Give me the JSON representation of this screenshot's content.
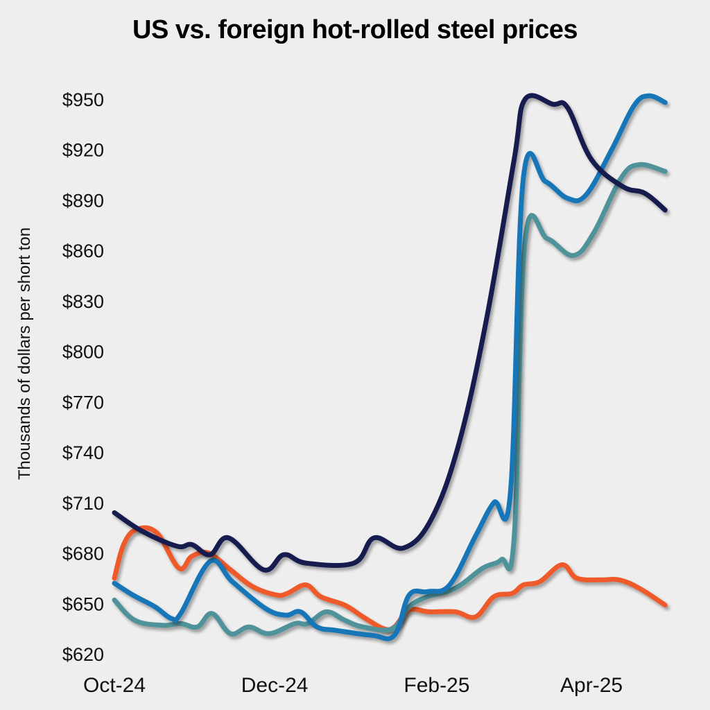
{
  "chart_data": {
    "type": "line",
    "title": "US vs. foreign hot-rolled steel prices",
    "xlabel": "",
    "ylabel": "Thousands of dollars per short ton",
    "ylim": [
      620,
      950
    ],
    "xlim_weeks": [
      0,
      30
    ],
    "grid": false,
    "legend": "none",
    "y_ticks": [
      {
        "value": 950,
        "label": "$950"
      },
      {
        "value": 920,
        "label": "$920"
      },
      {
        "value": 890,
        "label": "$890"
      },
      {
        "value": 860,
        "label": "$860"
      },
      {
        "value": 830,
        "label": "$830"
      },
      {
        "value": 800,
        "label": "$800"
      },
      {
        "value": 770,
        "label": "$770"
      },
      {
        "value": 740,
        "label": "$740"
      },
      {
        "value": 710,
        "label": "$710"
      },
      {
        "value": 680,
        "label": "$680"
      },
      {
        "value": 650,
        "label": "$650"
      },
      {
        "value": 620,
        "label": "$620"
      }
    ],
    "x_ticks": [
      {
        "week": 0,
        "label": "Oct-24"
      },
      {
        "week": 8.7,
        "label": "Dec-24"
      },
      {
        "week": 17.5,
        "label": "Feb-25"
      },
      {
        "week": 25.9,
        "label": "Apr-25"
      }
    ],
    "series": [
      {
        "name": "Series 1 (navy)",
        "color": "#141a4e",
        "points": [
          [
            0,
            704
          ],
          [
            1.5,
            693
          ],
          [
            3.4,
            684
          ],
          [
            4.2,
            685
          ],
          [
            5.2,
            679
          ],
          [
            6.2,
            689
          ],
          [
            8.1,
            670
          ],
          [
            9.2,
            679
          ],
          [
            10.4,
            674
          ],
          [
            13,
            674
          ],
          [
            14.1,
            689
          ],
          [
            15.7,
            683
          ],
          [
            17.2,
            700
          ],
          [
            18.7,
            745
          ],
          [
            20.2,
            819
          ],
          [
            21.7,
            914
          ],
          [
            22.3,
            950
          ],
          [
            23.8,
            947
          ],
          [
            24.6,
            945
          ],
          [
            25.9,
            914
          ],
          [
            27.6,
            898
          ],
          [
            28.8,
            894
          ],
          [
            29.9,
            884
          ]
        ]
      },
      {
        "name": "Series 2 (blue)",
        "color": "#1476b8",
        "points": [
          [
            0,
            662
          ],
          [
            1,
            655
          ],
          [
            2.2,
            648
          ],
          [
            3.1,
            641
          ],
          [
            3.6,
            644
          ],
          [
            5.2,
            675
          ],
          [
            6.4,
            663
          ],
          [
            8.2,
            647
          ],
          [
            9.3,
            643
          ],
          [
            10.1,
            645
          ],
          [
            11,
            636
          ],
          [
            12,
            634
          ],
          [
            14,
            631
          ],
          [
            15.2,
            631
          ],
          [
            16,
            655
          ],
          [
            17,
            657
          ],
          [
            18.2,
            661
          ],
          [
            19.6,
            690
          ],
          [
            20.6,
            710
          ],
          [
            21.5,
            716
          ],
          [
            22.2,
            903
          ],
          [
            23.4,
            901
          ],
          [
            24.6,
            891
          ],
          [
            25.6,
            893
          ],
          [
            27,
            920
          ],
          [
            28.2,
            946
          ],
          [
            29,
            952
          ],
          [
            29.9,
            948
          ]
        ]
      },
      {
        "name": "Series 3 (teal)",
        "color": "#4f929a",
        "points": [
          [
            0,
            652
          ],
          [
            1.1,
            640
          ],
          [
            2.6,
            637
          ],
          [
            3.6,
            638
          ],
          [
            4.5,
            636
          ],
          [
            5.3,
            644
          ],
          [
            6.3,
            632
          ],
          [
            7.3,
            636
          ],
          [
            8.4,
            632
          ],
          [
            9.8,
            638
          ],
          [
            10.5,
            638
          ],
          [
            11.5,
            645
          ],
          [
            12.5,
            640
          ],
          [
            13.5,
            636
          ],
          [
            15.1,
            635
          ],
          [
            16,
            648
          ],
          [
            17,
            654
          ],
          [
            18.5,
            659
          ],
          [
            20,
            671
          ],
          [
            21,
            676
          ],
          [
            21.7,
            689
          ],
          [
            22.3,
            866
          ],
          [
            23.5,
            867
          ],
          [
            24.9,
            857
          ],
          [
            26,
            870
          ],
          [
            27.5,
            903
          ],
          [
            28.5,
            911
          ],
          [
            29.9,
            907
          ]
        ]
      },
      {
        "name": "Series 4 (orange)",
        "color": "#ef5a2a",
        "points": [
          [
            0,
            665
          ],
          [
            0.5,
            685
          ],
          [
            1.2,
            694
          ],
          [
            2.3,
            692
          ],
          [
            3.5,
            671
          ],
          [
            4.2,
            678
          ],
          [
            5.1,
            680
          ],
          [
            6.3,
            670
          ],
          [
            7.5,
            660
          ],
          [
            8.8,
            655
          ],
          [
            9.4,
            656
          ],
          [
            10.4,
            661
          ],
          [
            11.2,
            654
          ],
          [
            12.5,
            649
          ],
          [
            13.5,
            642
          ],
          [
            14.6,
            635
          ],
          [
            15.2,
            636
          ],
          [
            16,
            646
          ],
          [
            17.1,
            645
          ],
          [
            18.5,
            645
          ],
          [
            19.6,
            642
          ],
          [
            20.6,
            654
          ],
          [
            21.6,
            656
          ],
          [
            22.2,
            661
          ],
          [
            23.1,
            663
          ],
          [
            24.3,
            673
          ],
          [
            25.1,
            665
          ],
          [
            26.4,
            664
          ],
          [
            27.4,
            664
          ],
          [
            28.5,
            659
          ],
          [
            29.9,
            649
          ]
        ]
      }
    ]
  }
}
